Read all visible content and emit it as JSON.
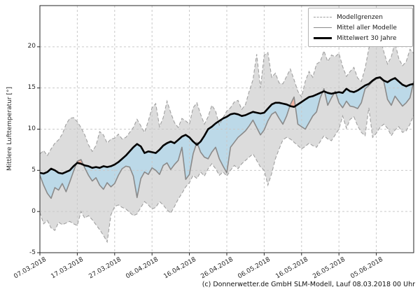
{
  "ylabel_unit_note": "axis label shown on left side",
  "chart_data": {
    "type": "line",
    "title": "",
    "xlabel": "",
    "ylabel": "Mittlere Lufttemperatur [°]",
    "grid": true,
    "legend_position": "upper right",
    "ylim": [
      -5,
      25
    ],
    "xlim_days": [
      0,
      100
    ],
    "y_ticks": [
      -5,
      0,
      5,
      10,
      15,
      20
    ],
    "x_ticks": [
      {
        "day": 0,
        "label": "07.03.2018"
      },
      {
        "day": 10,
        "label": "17.03.2018"
      },
      {
        "day": 20,
        "label": "27.03.2018"
      },
      {
        "day": 30,
        "label": "06.04.2018"
      },
      {
        "day": 40,
        "label": "16.04.2018"
      },
      {
        "day": 50,
        "label": "26.04.2018"
      },
      {
        "day": 60,
        "label": "06.05.2018"
      },
      {
        "day": 70,
        "label": "16.05.2018"
      },
      {
        "day": 80,
        "label": "26.05.2018"
      },
      {
        "day": 90,
        "label": "05.06.2018"
      }
    ],
    "series": [
      {
        "name": "Modellgrenzen (obere Grenze)",
        "role": "upper_bound",
        "style": "dashed-gray",
        "values": [
          7.0,
          7.4,
          6.8,
          7.6,
          8.3,
          8.7,
          9.4,
          10.6,
          11.3,
          11.4,
          10.9,
          10.2,
          9.3,
          8.1,
          7.3,
          8.0,
          9.7,
          9.3,
          8.3,
          8.8,
          8.9,
          9.4,
          8.8,
          9.0,
          9.6,
          10.2,
          11.2,
          10.4,
          9.6,
          11.0,
          12.6,
          13.1,
          10.3,
          11.4,
          13.4,
          12.0,
          10.8,
          10.2,
          11.3,
          11.0,
          10.6,
          12.6,
          13.2,
          11.8,
          10.6,
          11.5,
          12.9,
          12.2,
          10.5,
          11.4,
          12.2,
          12.6,
          13.3,
          13.5,
          12.4,
          13.0,
          14.6,
          16.0,
          19.1,
          15.0,
          19.0,
          19.3,
          16.3,
          16.8,
          15.6,
          15.5,
          16.4,
          17.3,
          16.0,
          14.6,
          13.9,
          15.8,
          17.0,
          16.3,
          17.9,
          18.2,
          19.5,
          18.2,
          19.0,
          18.8,
          19.2,
          17.6,
          16.4,
          17.0,
          17.5,
          16.2,
          15.8,
          17.4,
          19.8,
          21.0,
          20.4,
          21.2,
          19.4,
          17.9,
          18.8,
          20.5,
          18.6,
          17.7,
          18.2,
          19.7,
          19.2
        ]
      },
      {
        "name": "Modellgrenzen (untere Grenze)",
        "role": "lower_bound",
        "style": "dashed-gray",
        "values": [
          -0.1,
          -1.5,
          -1.1,
          -2.0,
          -2.3,
          -1.3,
          -1.6,
          -1.4,
          -1.2,
          -1.5,
          -1.7,
          0.0,
          -0.8,
          -0.5,
          -1.0,
          -1.6,
          -2.2,
          -2.9,
          -3.7,
          -0.4,
          0.6,
          0.8,
          0.5,
          0.3,
          -0.1,
          -0.5,
          -0.3,
          0.5,
          1.2,
          0.8,
          0.3,
          0.5,
          1.2,
          0.8,
          0.2,
          -0.2,
          0.6,
          1.5,
          2.2,
          3.0,
          3.5,
          4.4,
          4.0,
          4.8,
          4.3,
          5.2,
          5.8,
          5.2,
          4.4,
          4.8,
          4.3,
          5.0,
          5.6,
          5.2,
          5.8,
          6.2,
          6.6,
          7.0,
          6.2,
          5.4,
          5.0,
          3.2,
          4.6,
          6.4,
          7.6,
          8.7,
          9.0,
          8.8,
          8.4,
          8.0,
          7.6,
          7.9,
          8.3,
          8.0,
          7.8,
          8.5,
          9.2,
          8.8,
          8.6,
          9.3,
          10.0,
          11.6,
          10.1,
          11.2,
          11.5,
          10.4,
          9.6,
          9.2,
          12.6,
          9.0,
          9.5,
          10.2,
          10.6,
          10.1,
          9.2,
          9.9,
          10.3,
          9.6,
          9.8,
          10.6,
          11.7
        ]
      },
      {
        "name": "Mittel aller Modelle",
        "role": "model_mean",
        "style": "solid-gray",
        "values": [
          4.4,
          3.2,
          2.2,
          1.6,
          2.9,
          2.6,
          3.4,
          2.4,
          3.6,
          4.9,
          6.1,
          6.3,
          5.3,
          4.4,
          3.7,
          4.1,
          3.2,
          2.7,
          3.5,
          3.0,
          3.4,
          4.4,
          5.2,
          5.5,
          5.4,
          4.3,
          1.7,
          4.0,
          4.8,
          4.5,
          5.3,
          5.0,
          4.5,
          5.6,
          5.9,
          5.1,
          5.7,
          6.2,
          7.8,
          3.9,
          4.5,
          7.0,
          8.4,
          7.2,
          6.6,
          6.4,
          7.2,
          7.8,
          6.4,
          5.5,
          4.7,
          7.8,
          8.4,
          9.0,
          9.4,
          9.8,
          10.4,
          11.1,
          10.2,
          9.3,
          9.9,
          11.0,
          11.8,
          12.1,
          11.3,
          10.6,
          11.6,
          13.0,
          13.9,
          10.6,
          10.3,
          10.0,
          10.8,
          11.6,
          12.1,
          13.8,
          14.9,
          12.9,
          13.8,
          14.6,
          13.2,
          12.6,
          13.4,
          12.8,
          12.7,
          12.5,
          13.2,
          14.9,
          15.3,
          15.8,
          16.1,
          16.2,
          15.8,
          13.6,
          12.9,
          14.0,
          13.4,
          12.8,
          13.2,
          13.8,
          15.8
        ]
      },
      {
        "name": "Mittelwert 30 Jahre",
        "role": "climate_mean",
        "style": "solid-black-thick",
        "values": [
          4.7,
          4.6,
          4.8,
          5.2,
          5.0,
          4.7,
          4.6,
          4.8,
          5.0,
          5.5,
          5.9,
          5.8,
          5.6,
          5.5,
          5.3,
          5.4,
          5.3,
          5.5,
          5.4,
          5.5,
          5.7,
          6.0,
          6.4,
          6.8,
          7.3,
          7.8,
          8.2,
          7.9,
          7.1,
          7.3,
          7.2,
          7.1,
          7.5,
          8.0,
          8.3,
          8.5,
          8.3,
          8.7,
          9.1,
          9.3,
          9.0,
          8.5,
          8.1,
          8.5,
          9.2,
          10.0,
          10.3,
          10.7,
          11.0,
          11.3,
          11.5,
          11.8,
          11.9,
          11.8,
          11.6,
          11.7,
          11.9,
          12.1,
          12.0,
          11.9,
          12.0,
          12.5,
          13.0,
          13.2,
          13.2,
          13.1,
          13.0,
          12.8,
          12.7,
          13.0,
          13.3,
          13.6,
          13.9,
          14.0,
          14.2,
          14.4,
          14.6,
          14.4,
          14.3,
          14.4,
          14.5,
          14.4,
          14.9,
          14.6,
          14.5,
          14.7,
          15.0,
          15.3,
          15.5,
          15.9,
          16.2,
          16.3,
          15.9,
          15.7,
          16.0,
          16.2,
          15.8,
          15.4,
          15.2,
          15.4,
          15.5
        ]
      }
    ],
    "fills": {
      "band_between_bounds": "gray",
      "model_mean_below_climate": "lightblue",
      "model_mean_above_climate": "lightred"
    }
  },
  "legend": {
    "items": [
      {
        "label": "Modellgrenzen",
        "style": "dashed-gray"
      },
      {
        "label": "Mittel aller Modelle",
        "style": "solid-gray"
      },
      {
        "label": "Mittelwert 30 Jahre",
        "style": "solid-black-thick"
      }
    ]
  },
  "footer": {
    "credit": "(c) Donnerwetter.de GmbH SLM-Modell, Lauf 08.03.2018 00 Uhr"
  },
  "colors": {
    "band_gray": "#dcdcdc",
    "bound_line": "#a0a0a0",
    "blue_fill": "#bcd9e8",
    "red_fill": "#f0b4a4",
    "model_mean_line": "#8a8a8a",
    "climate_mean_line": "#000000",
    "grid": "#c9c9c9",
    "frame": "#262626",
    "tick": "#262626"
  }
}
